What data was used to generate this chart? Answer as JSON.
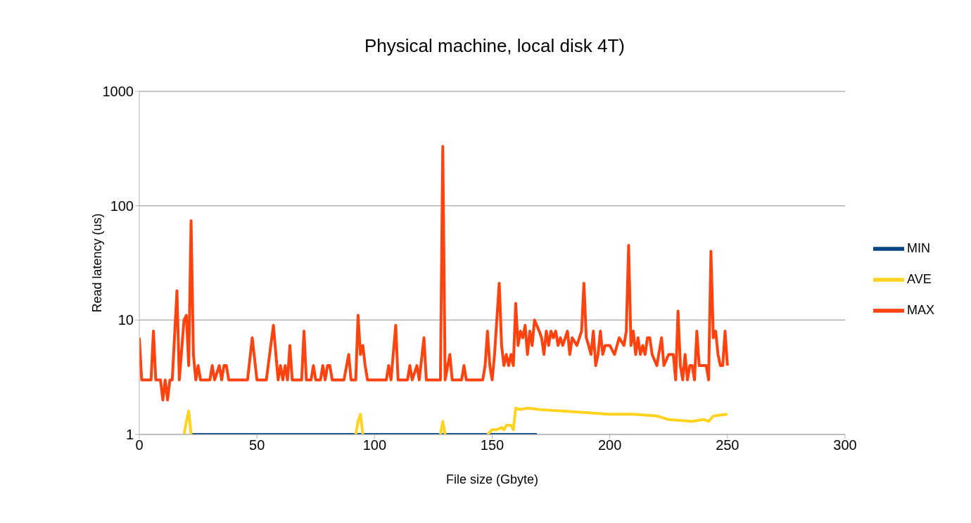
{
  "chart_data": {
    "type": "line",
    "title": "Physical machine, local disk 4T)",
    "xlabel": "File size (Gbyte)",
    "ylabel": "Read latency (us)",
    "log": "y",
    "xlim": [
      0,
      300
    ],
    "xticks": [
      0,
      50,
      100,
      150,
      200,
      250,
      300
    ],
    "ylim": [
      1,
      1000
    ],
    "yticks": [
      1,
      10,
      100,
      1000
    ],
    "grid": "y",
    "legend": "right",
    "line_style": "solid",
    "series": [
      {
        "name": "MIN",
        "color": "#004586",
        "x": [
          22,
          169
        ],
        "values": [
          1,
          1
        ]
      },
      {
        "name": "AVE",
        "color": "#ffd320",
        "x": [
          19,
          20,
          21,
          22,
          23,
          92,
          93,
          94,
          95,
          96,
          128,
          129,
          130,
          131,
          148,
          150,
          152,
          154,
          155,
          156,
          158,
          159,
          160,
          162,
          165,
          170,
          180,
          190,
          200,
          210,
          220,
          225,
          235,
          240,
          242,
          244,
          250
        ],
        "values": [
          1.0,
          1.3,
          1.6,
          1.0,
          null,
          1.0,
          1.3,
          1.5,
          1.0,
          null,
          1.0,
          1.3,
          1.0,
          null,
          1.0,
          1.1,
          1.1,
          1.15,
          1.1,
          1.2,
          1.2,
          1.1,
          1.7,
          1.65,
          1.7,
          1.65,
          1.6,
          1.55,
          1.5,
          1.5,
          1.45,
          1.35,
          1.3,
          1.35,
          1.3,
          1.45,
          1.5
        ]
      },
      {
        "name": "MAX",
        "color": "#ff420e",
        "x": [
          0,
          1,
          5,
          6,
          7,
          9,
          10,
          11,
          12,
          13,
          14,
          16,
          17,
          19,
          20,
          21,
          22,
          23,
          24,
          25,
          26,
          30,
          31,
          32,
          34,
          35,
          36,
          37,
          38,
          46,
          48,
          50,
          54,
          57,
          59,
          60,
          61,
          62,
          63,
          64,
          65,
          69,
          70,
          71,
          73,
          74,
          75,
          77,
          78,
          79,
          80,
          81,
          82,
          87,
          89,
          90,
          92,
          93,
          94,
          95,
          96,
          97,
          105,
          106,
          107,
          109,
          110,
          114,
          115,
          116,
          118,
          119,
          121,
          122,
          128,
          129,
          130,
          132,
          133,
          137,
          138,
          139,
          146,
          147,
          148,
          149,
          150,
          151,
          153,
          154,
          155,
          156,
          157,
          158,
          159,
          160,
          161,
          162,
          163,
          164,
          165,
          166,
          167,
          168,
          170,
          171,
          172,
          173,
          174,
          175,
          176,
          177,
          178,
          179,
          180,
          182,
          183,
          184,
          186,
          188,
          189,
          190,
          191,
          192,
          193,
          194,
          195,
          196,
          197,
          198,
          200,
          202,
          204,
          206,
          207,
          208,
          209,
          210,
          211,
          212,
          213,
          214,
          215,
          216,
          217,
          218,
          220,
          222,
          223,
          225,
          227,
          228,
          229,
          230,
          231,
          232,
          233,
          234,
          235,
          236,
          237,
          238,
          240,
          241,
          242,
          243,
          244,
          245,
          246,
          247,
          248,
          249,
          250
        ],
        "values": [
          7,
          3,
          3,
          8,
          3,
          3,
          2,
          3,
          2,
          3,
          3,
          18,
          3,
          10,
          11,
          4,
          74,
          5,
          3,
          4,
          3,
          3,
          4,
          3,
          4,
          3,
          4,
          4,
          3,
          3,
          7,
          3,
          3,
          9,
          3,
          4,
          3,
          4,
          3,
          6,
          3,
          3,
          8,
          3,
          3,
          4,
          3,
          3,
          4,
          3,
          4,
          4,
          3,
          3,
          5,
          3,
          3,
          11,
          5,
          6,
          4,
          3,
          3,
          4,
          3,
          9,
          3,
          3,
          4,
          3,
          4,
          3,
          7,
          3,
          3,
          330,
          3,
          5,
          3,
          3,
          4,
          3,
          3,
          4,
          8,
          4,
          3,
          5,
          21,
          6,
          4,
          5,
          4,
          5,
          4,
          14,
          6,
          8,
          7,
          9,
          5,
          8,
          6,
          10,
          8,
          7,
          5,
          8,
          6,
          8,
          7,
          8,
          6,
          7,
          6,
          8,
          5,
          7,
          6,
          8,
          21,
          7,
          6,
          5,
          8,
          4,
          5,
          8,
          5,
          6,
          6,
          5,
          7,
          6,
          8,
          45,
          6,
          8,
          5,
          7,
          5,
          6,
          5,
          7,
          7,
          5,
          4,
          7,
          4,
          5,
          5,
          3,
          12,
          4,
          3,
          5,
          3,
          4,
          4,
          3,
          8,
          4,
          4,
          4,
          3,
          40,
          7,
          8,
          5,
          4,
          4,
          8,
          4
        ]
      }
    ]
  }
}
